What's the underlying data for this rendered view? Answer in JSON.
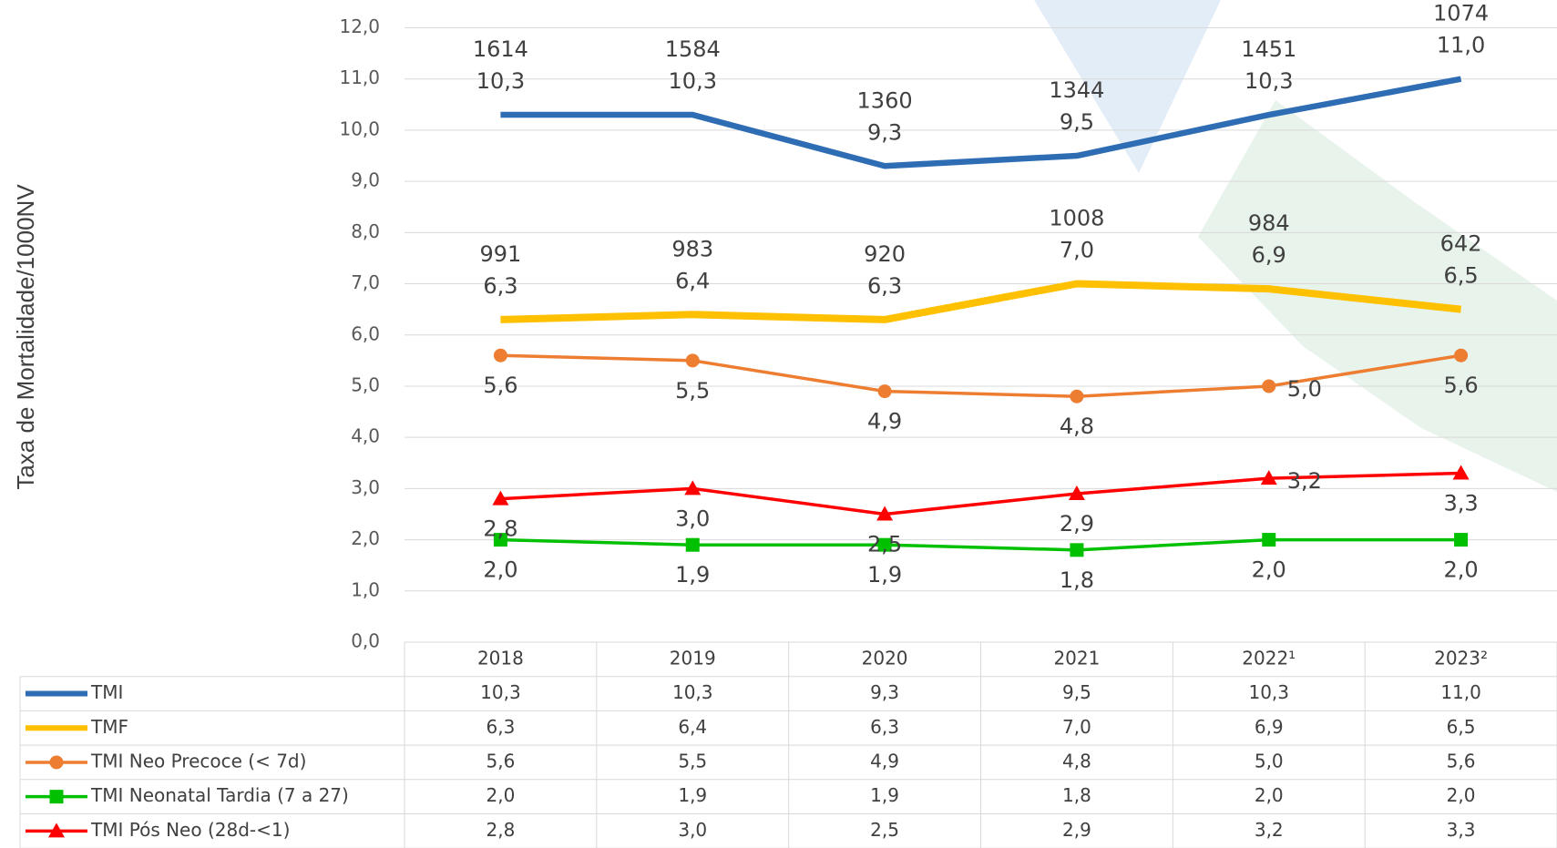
{
  "chart_data": {
    "type": "line",
    "y_label": "Taxa de Mortalidade/1000NV",
    "categories": [
      "2018",
      "2019",
      "2020",
      "2021",
      "2022¹",
      "2023²"
    ],
    "ylim": [
      0,
      12
    ],
    "yticks": [
      {
        "value": 0,
        "label": "0,0"
      },
      {
        "value": 1,
        "label": "1,0"
      },
      {
        "value": 2,
        "label": "2,0"
      },
      {
        "value": 3,
        "label": "3,0"
      },
      {
        "value": 4,
        "label": "4,0"
      },
      {
        "value": 5,
        "label": "5,0"
      },
      {
        "value": 6,
        "label": "6,0"
      },
      {
        "value": 7,
        "label": "7,0"
      },
      {
        "value": 8,
        "label": "8,0"
      },
      {
        "value": 9,
        "label": "9,0"
      },
      {
        "value": 10,
        "label": "10,0"
      },
      {
        "value": 11,
        "label": "11,0"
      },
      {
        "value": 12,
        "label": "12,0"
      }
    ],
    "grid": true,
    "series": [
      {
        "name": "TMI",
        "color": "#2e6db4",
        "marker": "none",
        "values": [
          10.3,
          10.3,
          9.3,
          9.5,
          10.3,
          11.0
        ],
        "value_labels": [
          "10,3",
          "10,3",
          "9,3",
          "9,5",
          "10,3",
          "11,0"
        ],
        "counts": [
          1614,
          1584,
          1360,
          1344,
          1451,
          1074
        ]
      },
      {
        "name": "TMF",
        "color": "#ffc000",
        "marker": "none",
        "values": [
          6.3,
          6.4,
          6.3,
          7.0,
          6.9,
          6.5
        ],
        "value_labels": [
          "6,3",
          "6,4",
          "6,3",
          "7,0",
          "6,9",
          "6,5"
        ],
        "counts": [
          991,
          983,
          920,
          1008,
          984,
          642
        ]
      },
      {
        "name": "TMI Neo Precoce (< 7d)",
        "color": "#ed7d31",
        "marker": "circle",
        "values": [
          5.6,
          5.5,
          4.9,
          4.8,
          5.0,
          5.6
        ],
        "value_labels": [
          "5,6",
          "5,5",
          "4,9",
          "4,8",
          "5,0",
          "5,6"
        ]
      },
      {
        "name": "TMI Neonatal Tardia (7 a 27)",
        "color": "#00c000",
        "marker": "square",
        "values": [
          2.0,
          1.9,
          1.9,
          1.8,
          2.0,
          2.0
        ],
        "value_labels": [
          "2,0",
          "1,9",
          "1,9",
          "1,8",
          "2,0",
          "2,0"
        ]
      },
      {
        "name": "TMI Pós Neo (28d-<1)",
        "color": "#ff0000",
        "marker": "triangle",
        "values": [
          2.8,
          3.0,
          2.5,
          2.9,
          3.2,
          3.3
        ],
        "value_labels": [
          "2,8",
          "3,0",
          "2,5",
          "2,9",
          "3,2",
          "3,3"
        ]
      }
    ]
  }
}
